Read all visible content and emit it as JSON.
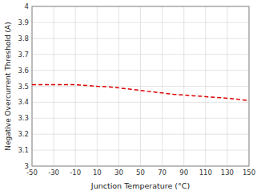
{
  "chart_data": {
    "type": "line",
    "xlabel": "Junction Temperature (°C)",
    "ylabel": "Negative Overcurrent Threshold (A)",
    "x": [
      -50,
      -40,
      -30,
      -20,
      -10,
      0,
      10,
      20,
      30,
      40,
      50,
      60,
      70,
      80,
      90,
      100,
      110,
      120,
      130,
      140,
      150
    ],
    "values": [
      3.51,
      3.51,
      3.51,
      3.51,
      3.51,
      3.505,
      3.5,
      3.497,
      3.49,
      3.482,
      3.474,
      3.466,
      3.458,
      3.45,
      3.445,
      3.44,
      3.435,
      3.43,
      3.425,
      3.418,
      3.41
    ],
    "color": "#dd0000",
    "line_style": "dashed",
    "xlim": [
      -50,
      150
    ],
    "ylim": [
      3.0,
      4.0
    ],
    "xticks": [
      -50,
      -30,
      -10,
      10,
      30,
      50,
      70,
      90,
      110,
      130,
      150
    ],
    "yticks": [
      3.0,
      3.1,
      3.2,
      3.3,
      3.4,
      3.5,
      3.6,
      3.7,
      3.8,
      3.9,
      4.0
    ],
    "grid": true
  }
}
